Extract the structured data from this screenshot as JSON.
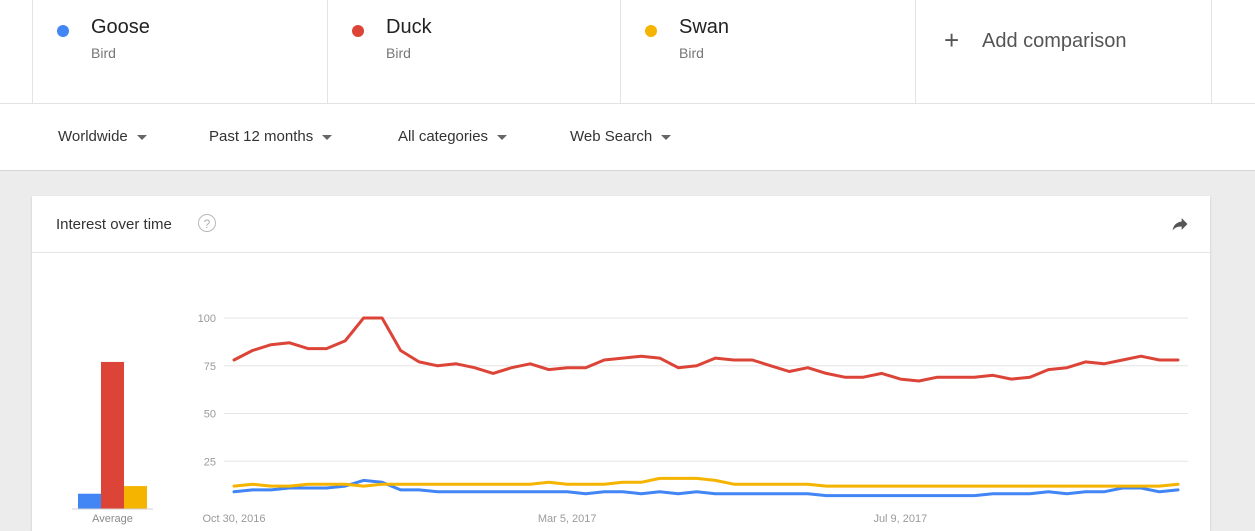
{
  "terms": [
    {
      "name": "Goose",
      "sub": "Bird",
      "color": "#4285f4"
    },
    {
      "name": "Duck",
      "sub": "Bird",
      "color": "#db4437"
    },
    {
      "name": "Swan",
      "sub": "Bird",
      "color": "#f4b400"
    }
  ],
  "add_comparison": {
    "icon": "plus-icon",
    "label": "Add comparison"
  },
  "filters": [
    {
      "label": "Worldwide"
    },
    {
      "label": "Past 12 months"
    },
    {
      "label": "All categories"
    },
    {
      "label": "Web Search"
    }
  ],
  "card": {
    "title": "Interest over time",
    "help_icon": "help-circle-icon",
    "share_icon": "share-icon"
  },
  "chart_data": {
    "type": "line",
    "title": "Interest over time",
    "ylim": [
      0,
      100
    ],
    "yticks": [
      25,
      50,
      75,
      100
    ],
    "x_tick_labels": [
      "Oct 30, 2016",
      "Mar 5, 2017",
      "Jul 9, 2017"
    ],
    "x_tick_indices": [
      0,
      18,
      36
    ],
    "average": {
      "label": "Average",
      "values": [
        {
          "series": "Goose",
          "value": 8
        },
        {
          "series": "Duck",
          "value": 77
        },
        {
          "series": "Swan",
          "value": 12
        }
      ]
    },
    "series": [
      {
        "name": "Duck",
        "color": "#db4437",
        "values": [
          78,
          83,
          86,
          87,
          84,
          84,
          88,
          100,
          100,
          83,
          77,
          75,
          76,
          74,
          71,
          74,
          76,
          73,
          74,
          74,
          78,
          79,
          80,
          79,
          74,
          75,
          79,
          78,
          78,
          75,
          72,
          74,
          71,
          69,
          69,
          71,
          68,
          67,
          69,
          69,
          69,
          70,
          68,
          69,
          73,
          74,
          77,
          76,
          78,
          80,
          78,
          78
        ]
      },
      {
        "name": "Goose",
        "color": "#4285f4",
        "values": [
          9,
          10,
          10,
          11,
          11,
          11,
          12,
          15,
          14,
          10,
          10,
          9,
          9,
          9,
          9,
          9,
          9,
          9,
          9,
          8,
          9,
          9,
          8,
          9,
          8,
          9,
          8,
          8,
          8,
          8,
          8,
          8,
          7,
          7,
          7,
          7,
          7,
          7,
          7,
          7,
          7,
          8,
          8,
          8,
          9,
          8,
          9,
          9,
          11,
          11,
          9,
          10
        ]
      },
      {
        "name": "Swan",
        "color": "#f4b400",
        "values": [
          12,
          13,
          12,
          12,
          13,
          13,
          13,
          12,
          13,
          13,
          13,
          13,
          13,
          13,
          13,
          13,
          13,
          14,
          13,
          13,
          13,
          14,
          14,
          16,
          16,
          16,
          15,
          13,
          13,
          13,
          13,
          13,
          12,
          12,
          12,
          12,
          12,
          12,
          12,
          12,
          12,
          12,
          12,
          12,
          12,
          12,
          12,
          12,
          12,
          12,
          12,
          13
        ]
      }
    ]
  }
}
